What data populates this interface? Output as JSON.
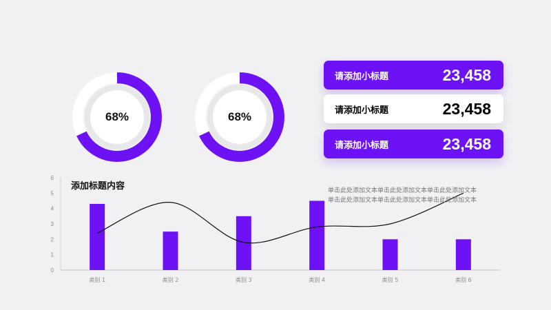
{
  "colors": {
    "accent": "#6d12f5",
    "track": "#ffffff",
    "inner": "#e8e8ea",
    "background": "#f1f1f3"
  },
  "donuts": [
    {
      "value": 68,
      "label": "68%"
    },
    {
      "value": 68,
      "label": "68%"
    }
  ],
  "stats": [
    {
      "label": "请添加小标题",
      "value": "23,458",
      "style": "purple"
    },
    {
      "label": "请添加小标题",
      "value": "23,458",
      "style": "white"
    },
    {
      "label": "请添加小标题",
      "value": "23,458",
      "style": "purple"
    }
  ],
  "note": {
    "line1": "单击此处添加文本单击此处添加文本单击此处添加文本",
    "line2": "单击此处添加文本单击此处添加文本单击此处添加文本"
  },
  "chart_data": {
    "type": "bar",
    "title": "添加标题内容",
    "categories": [
      "类别 1",
      "类别 2",
      "类别 3",
      "类别 4",
      "类别 5",
      "类别 6"
    ],
    "series": [
      {
        "type": "bar",
        "values": [
          4.3,
          2.5,
          3.5,
          4.5,
          2.0,
          2.0
        ]
      },
      {
        "type": "line",
        "smooth": true,
        "values": [
          2.4,
          4.4,
          1.8,
          2.8,
          3.0,
          5.0
        ]
      }
    ],
    "ylim": [
      0,
      6
    ],
    "yticks": [
      0,
      1,
      2,
      3,
      4,
      5,
      6
    ],
    "grid": false,
    "legend": "none"
  }
}
